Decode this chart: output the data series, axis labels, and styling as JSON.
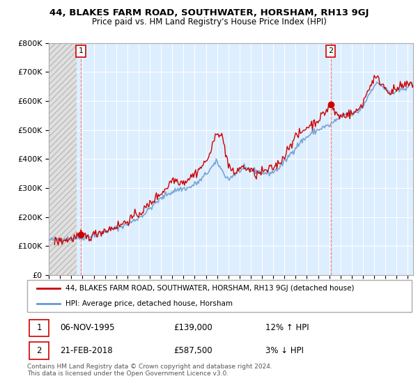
{
  "title": "44, BLAKES FARM ROAD, SOUTHWATER, HORSHAM, RH13 9GJ",
  "subtitle": "Price paid vs. HM Land Registry's House Price Index (HPI)",
  "legend_line1": "44, BLAKES FARM ROAD, SOUTHWATER, HORSHAM, RH13 9GJ (detached house)",
  "legend_line2": "HPI: Average price, detached house, Horsham",
  "point1_date": "06-NOV-1995",
  "point1_price": "£139,000",
  "point1_hpi": "12% ↑ HPI",
  "point2_date": "21-FEB-2018",
  "point2_price": "£587,500",
  "point2_hpi": "3% ↓ HPI",
  "footnote": "Contains HM Land Registry data © Crown copyright and database right 2024.\nThis data is licensed under the Open Government Licence v3.0.",
  "point1_x": 1995.85,
  "point1_y": 139000,
  "point2_x": 2018.12,
  "point2_y": 587500,
  "ylim": [
    0,
    800000
  ],
  "xlim_start": 1993.0,
  "xlim_end": 2025.5,
  "hatch_end": 1995.5,
  "price_color": "#cc0000",
  "hpi_color": "#6699cc",
  "chart_bg_color": "#ddeeff",
  "hatch_bg_color": "#e8e8e8",
  "grid_color": "#ffffff",
  "background_color": "#ffffff"
}
